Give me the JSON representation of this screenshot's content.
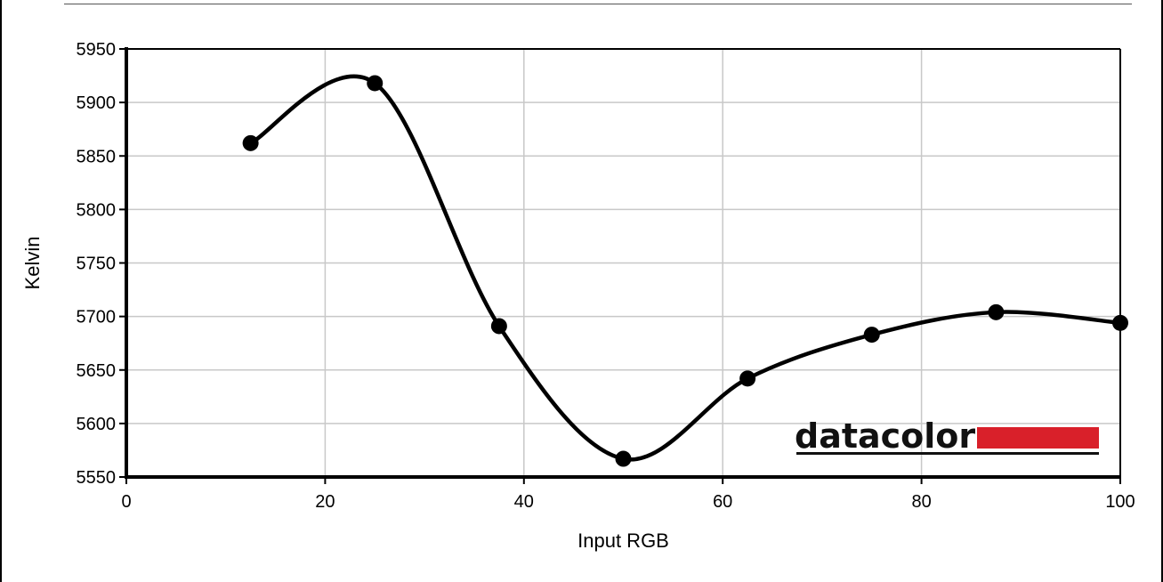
{
  "chart_data": {
    "type": "line",
    "xlabel": "Input RGB",
    "ylabel": "Kelvin",
    "xlim": [
      0,
      100
    ],
    "ylim": [
      5550,
      5950
    ],
    "xticks": [
      0,
      20,
      40,
      60,
      80,
      100
    ],
    "yticks": [
      5550,
      5600,
      5650,
      5700,
      5750,
      5800,
      5850,
      5900,
      5950
    ],
    "grid": true,
    "smooth": true,
    "series": [
      {
        "x": [
          12.5,
          25,
          37.5,
          50,
          62.5,
          75,
          87.5,
          100
        ],
        "y": [
          5862,
          5918,
          5691,
          5567,
          5642,
          5683,
          5704,
          5694
        ]
      }
    ],
    "logo": {
      "text": "datacolor",
      "accent_color": "#d9202a"
    }
  }
}
